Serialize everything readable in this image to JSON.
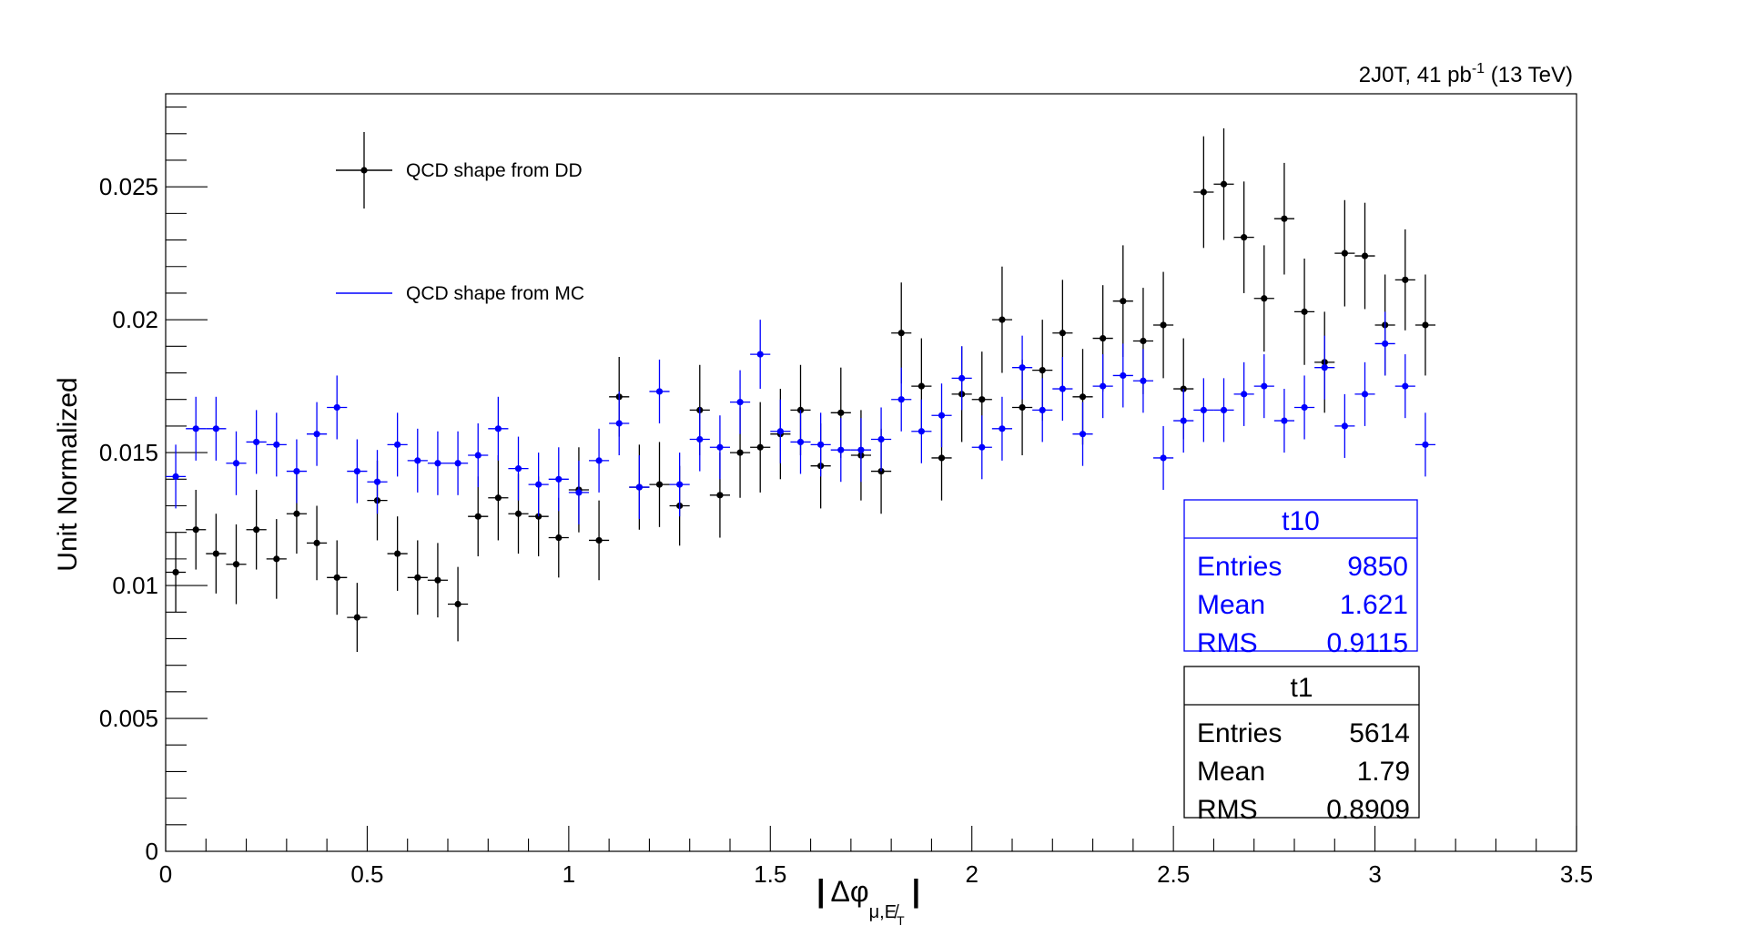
{
  "chart_data": {
    "type": "scatter",
    "top_label": {
      "main": "2J0T, 41 pb",
      "sup": "-1",
      "tail": " (13 TeV)"
    },
    "ylabel": "Unit Normalized",
    "xlabel": {
      "bar_left": "|",
      "main": "Δφ",
      "sub": "μ,E̸",
      "subsub": "T",
      "bar_right": "|"
    },
    "xlim": [
      0,
      3.5
    ],
    "ylim": [
      0,
      0.0285
    ],
    "x_ticks": [
      {
        "v": 0,
        "label": "0"
      },
      {
        "v": 0.5,
        "label": "0.5"
      },
      {
        "v": 1,
        "label": "1"
      },
      {
        "v": 1.5,
        "label": "1.5"
      },
      {
        "v": 2,
        "label": "2"
      },
      {
        "v": 2.5,
        "label": "2.5"
      },
      {
        "v": 3,
        "label": "3"
      },
      {
        "v": 3.5,
        "label": "3.5"
      }
    ],
    "y_ticks": [
      {
        "v": 0,
        "label": "0"
      },
      {
        "v": 0.005,
        "label": "0.005"
      },
      {
        "v": 0.01,
        "label": "0.01"
      },
      {
        "v": 0.015,
        "label": "0.015"
      },
      {
        "v": 0.02,
        "label": "0.02"
      },
      {
        "v": 0.025,
        "label": "0.025"
      }
    ],
    "bin_halfwidth": 0.025,
    "series": [
      {
        "name": "QCD shape from DD",
        "color": "#000000",
        "x": [
          0.025,
          0.075,
          0.125,
          0.175,
          0.225,
          0.275,
          0.325,
          0.375,
          0.425,
          0.475,
          0.525,
          0.575,
          0.625,
          0.675,
          0.725,
          0.775,
          0.825,
          0.875,
          0.925,
          0.975,
          1.025,
          1.075,
          1.125,
          1.175,
          1.225,
          1.275,
          1.325,
          1.375,
          1.425,
          1.475,
          1.525,
          1.575,
          1.625,
          1.675,
          1.725,
          1.775,
          1.825,
          1.875,
          1.925,
          1.975,
          2.025,
          2.075,
          2.125,
          2.175,
          2.225,
          2.275,
          2.325,
          2.375,
          2.425,
          2.475,
          2.525,
          2.575,
          2.625,
          2.675,
          2.725,
          2.775,
          2.825,
          2.875,
          2.925,
          2.975,
          3.025,
          3.075,
          3.125
        ],
        "y": [
          0.0105,
          0.0121,
          0.0112,
          0.0108,
          0.0121,
          0.011,
          0.0127,
          0.0116,
          0.0103,
          0.0088,
          0.0132,
          0.0112,
          0.0103,
          0.0102,
          0.0093,
          0.0126,
          0.0133,
          0.0127,
          0.0126,
          0.0118,
          0.0136,
          0.0117,
          0.0171,
          0.0137,
          0.0138,
          0.013,
          0.0166,
          0.0134,
          0.015,
          0.0152,
          0.0157,
          0.0166,
          0.0145,
          0.0165,
          0.0149,
          0.0143,
          0.0195,
          0.0175,
          0.0148,
          0.0172,
          0.017,
          0.02,
          0.0167,
          0.0181,
          0.0195,
          0.0171,
          0.0193,
          0.0207,
          0.0192,
          0.0198,
          0.0174,
          0.0248,
          0.0251,
          0.0231,
          0.0208,
          0.0238,
          0.0203,
          0.0184,
          0.0225,
          0.0224,
          0.0198,
          0.0215,
          0.0198
        ],
        "err": [
          0.0015,
          0.0015,
          0.0015,
          0.0015,
          0.0015,
          0.0015,
          0.0015,
          0.0014,
          0.0014,
          0.0013,
          0.0015,
          0.0014,
          0.0014,
          0.0014,
          0.0014,
          0.0015,
          0.0016,
          0.0015,
          0.0015,
          0.0015,
          0.0016,
          0.0015,
          0.0015,
          0.0016,
          0.0016,
          0.0015,
          0.0017,
          0.0016,
          0.0017,
          0.0017,
          0.0017,
          0.0017,
          0.0016,
          0.0017,
          0.0017,
          0.0016,
          0.0019,
          0.0018,
          0.0016,
          0.0018,
          0.0018,
          0.002,
          0.0018,
          0.0019,
          0.002,
          0.0018,
          0.002,
          0.0021,
          0.002,
          0.002,
          0.0019,
          0.0021,
          0.0021,
          0.0021,
          0.002,
          0.0021,
          0.002,
          0.0019,
          0.002,
          0.002,
          0.0019,
          0.0019,
          0.0019
        ]
      },
      {
        "name": "QCD shape from MC",
        "color": "#0000ff",
        "x": [
          0.025,
          0.075,
          0.125,
          0.175,
          0.225,
          0.275,
          0.325,
          0.375,
          0.425,
          0.475,
          0.525,
          0.575,
          0.625,
          0.675,
          0.725,
          0.775,
          0.825,
          0.875,
          0.925,
          0.975,
          1.025,
          1.075,
          1.125,
          1.175,
          1.225,
          1.275,
          1.325,
          1.375,
          1.425,
          1.475,
          1.525,
          1.575,
          1.625,
          1.675,
          1.725,
          1.775,
          1.825,
          1.875,
          1.925,
          1.975,
          2.025,
          2.075,
          2.125,
          2.175,
          2.225,
          2.275,
          2.325,
          2.375,
          2.425,
          2.475,
          2.525,
          2.575,
          2.625,
          2.675,
          2.725,
          2.775,
          2.825,
          2.875,
          2.925,
          2.975,
          3.025,
          3.075,
          3.125
        ],
        "y": [
          0.0141,
          0.0159,
          0.0159,
          0.0146,
          0.0154,
          0.0153,
          0.0143,
          0.0157,
          0.0167,
          0.0143,
          0.0139,
          0.0153,
          0.0147,
          0.0146,
          0.0146,
          0.0149,
          0.0159,
          0.0144,
          0.0138,
          0.014,
          0.0135,
          0.0147,
          0.0161,
          0.0137,
          0.0173,
          0.0138,
          0.0155,
          0.0152,
          0.0169,
          0.0187,
          0.0158,
          0.0154,
          0.0153,
          0.0151,
          0.0151,
          0.0155,
          0.017,
          0.0158,
          0.0164,
          0.0178,
          0.0152,
          0.0159,
          0.0182,
          0.0166,
          0.0174,
          0.0157,
          0.0175,
          0.0179,
          0.0177,
          0.0148,
          0.0162,
          0.0166,
          0.0166,
          0.0172,
          0.0175,
          0.0162,
          0.0167,
          0.0182,
          0.016,
          0.0172,
          0.0191,
          0.0175,
          0.0153
        ],
        "err": [
          0.0012,
          0.0012,
          0.0012,
          0.0012,
          0.0012,
          0.0012,
          0.0012,
          0.0012,
          0.0012,
          0.0012,
          0.0012,
          0.0012,
          0.0012,
          0.0012,
          0.0012,
          0.0012,
          0.0012,
          0.0012,
          0.0012,
          0.0012,
          0.0012,
          0.0012,
          0.0012,
          0.0012,
          0.0012,
          0.0012,
          0.0012,
          0.0012,
          0.0012,
          0.0013,
          0.0012,
          0.0012,
          0.0012,
          0.0012,
          0.0012,
          0.0012,
          0.0012,
          0.0012,
          0.0012,
          0.0012,
          0.0012,
          0.0012,
          0.0012,
          0.0012,
          0.0012,
          0.0012,
          0.0012,
          0.0012,
          0.0012,
          0.0012,
          0.0012,
          0.0012,
          0.0012,
          0.0012,
          0.0012,
          0.0012,
          0.0012,
          0.0012,
          0.0012,
          0.0012,
          0.0012,
          0.0012,
          0.0012
        ]
      }
    ],
    "legend": {
      "placement": "top-left",
      "entries": [
        "QCD shape from DD",
        "QCD shape from MC"
      ]
    },
    "stat_boxes": [
      {
        "name": "t10",
        "color": "#0000ff",
        "rows": [
          {
            "label": "Entries",
            "value": "9850"
          },
          {
            "label": "Mean",
            "value": "1.621"
          },
          {
            "label": "RMS",
            "value": "0.9115"
          }
        ]
      },
      {
        "name": "t1",
        "color": "#000000",
        "rows": [
          {
            "label": "Entries",
            "value": "5614"
          },
          {
            "label": "Mean",
            "value": "1.79"
          },
          {
            "label": "RMS",
            "value": "0.8909"
          }
        ]
      }
    ],
    "grid": false
  }
}
